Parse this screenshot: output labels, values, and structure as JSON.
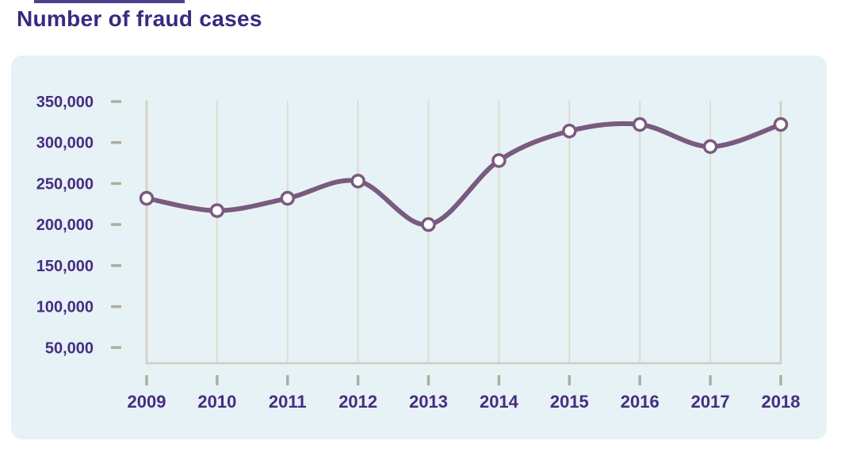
{
  "page": {
    "title": "Number of fraud cases"
  },
  "chart_data": {
    "type": "line",
    "title": "Number of fraud cases",
    "x": [
      "2009",
      "2010",
      "2011",
      "2012",
      "2013",
      "2014",
      "2015",
      "2016",
      "2017",
      "2018"
    ],
    "values": [
      232000,
      217000,
      232000,
      253000,
      200000,
      278000,
      314000,
      322000,
      295000,
      322000
    ],
    "series_name": "Number of fraud cases",
    "y_ticks": [
      "350,000",
      "300,000",
      "250,000",
      "200,000",
      "150,000",
      "100,000",
      "50,000"
    ],
    "y_tick_values": [
      350000,
      300000,
      250000,
      200000,
      150000,
      100000,
      50000
    ],
    "ylim": [
      31000,
      360000
    ],
    "xlabel": "",
    "ylabel": "",
    "grid": "vertical-gridlines-only",
    "legend": "none",
    "marker": "white-circle"
  },
  "colors": {
    "title_text": "#3a2a80",
    "axis_label_text": "#462d80",
    "line": "#7a5a7e",
    "marker_fill": "#ffffff",
    "marker_stroke": "#7a5a7e",
    "gridline": "#dfdbcd",
    "axis_line": "#d2cebf",
    "tick": "#b0ac9e",
    "panel_background": "#e6f2f6",
    "page_background": "#ffffff"
  }
}
